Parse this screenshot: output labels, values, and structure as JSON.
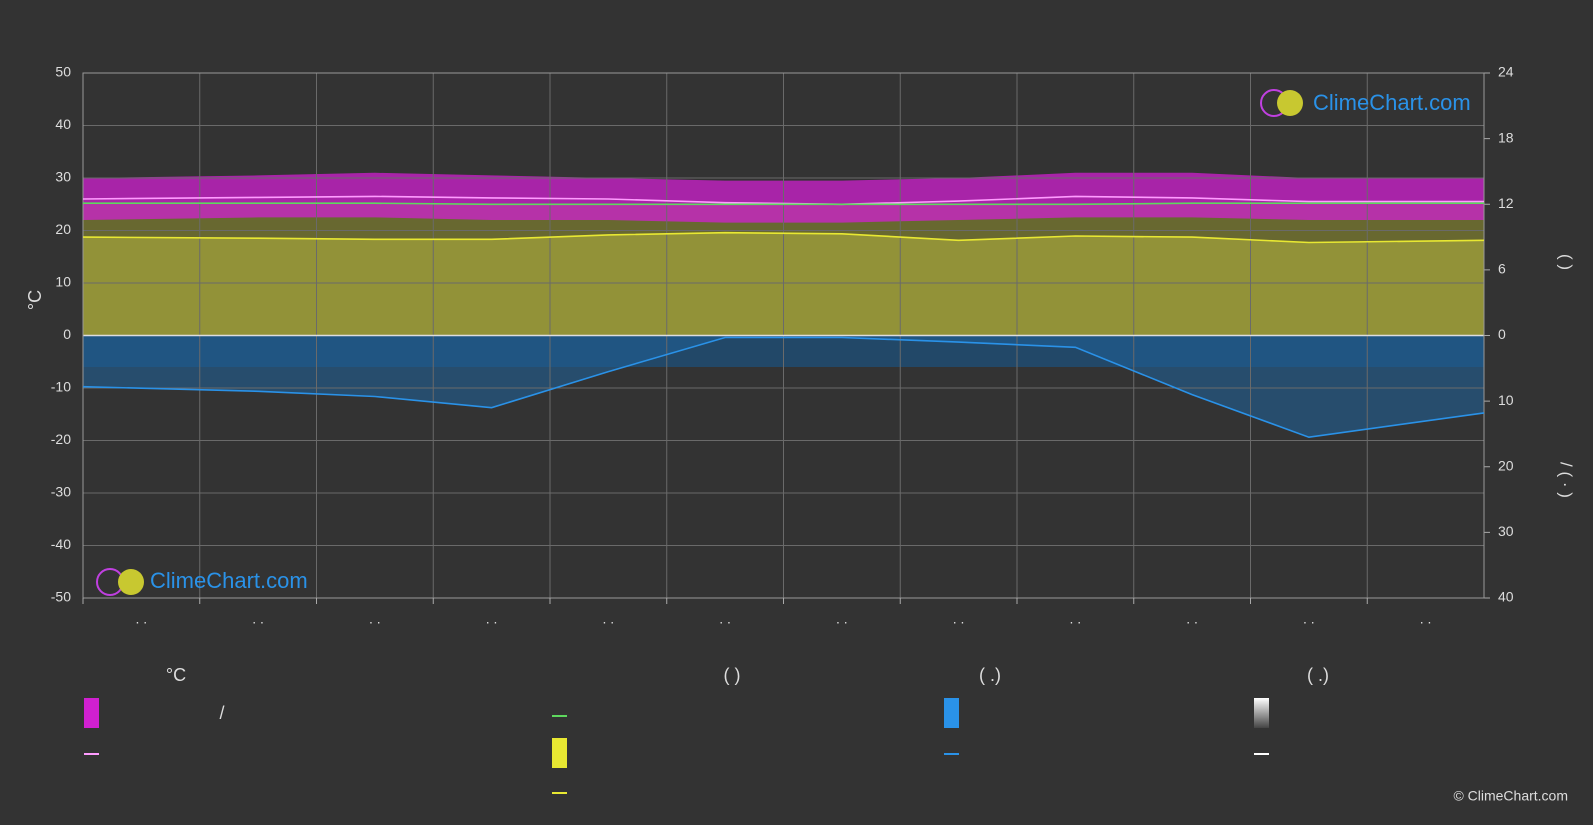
{
  "chart_data": {
    "type": "line",
    "y_label": "°C",
    "y2_label": "(   )",
    "y3_label": "/   ( · )",
    "categories": [
      ". .",
      ". .",
      ". .",
      ". .",
      ". .",
      ". .",
      ". .",
      ". .",
      ". .",
      ". .",
      ". .",
      ". ."
    ],
    "ylim": [
      -50,
      50
    ],
    "yticks": [
      -50,
      -40,
      -30,
      -20,
      -10,
      0,
      10,
      20,
      30,
      40,
      50
    ],
    "y2lim": [
      0,
      24
    ],
    "y2ticks": [
      0,
      6,
      12,
      18,
      24
    ],
    "y3lim": [
      0,
      40
    ],
    "y3ticks": [
      10,
      20,
      30,
      40
    ],
    "grid": true,
    "temp_band": {
      "color": "#d020d0",
      "upper": [
        30,
        30.5,
        31,
        30.5,
        30,
        29.5,
        29.5,
        30,
        31,
        31,
        30,
        30
      ],
      "lower": [
        22,
        22.5,
        22.5,
        22,
        22,
        21.5,
        21.5,
        22,
        22.5,
        22.5,
        22,
        22
      ]
    },
    "series": [
      {
        "color": "#ff9cff",
        "values": [
          26,
          26.3,
          26.5,
          26.2,
          26,
          25.3,
          25,
          25.6,
          26.5,
          26.2,
          25.5,
          25.5
        ]
      },
      {
        "color": "#5ed85e",
        "axis": "y2",
        "values": [
          12.1,
          12.1,
          12.1,
          12.0,
          12.0,
          12.0,
          12.0,
          12.0,
          12.0,
          12.1,
          12.1,
          12.1
        ]
      },
      {
        "color": "#e8e832",
        "axis": "y2",
        "values": [
          9.0,
          8.9,
          8.8,
          8.8,
          9.2,
          9.4,
          9.3,
          8.7,
          9.1,
          9.0,
          8.5,
          8.7
        ]
      },
      {
        "color": "#2a92e8",
        "axis": "y3",
        "values": [
          7.8,
          8.5,
          9.3,
          11,
          5.5,
          0.3,
          0.3,
          1,
          1.8,
          9,
          15.5,
          11.8
        ]
      }
    ]
  },
  "legend": {
    "headers": [
      "°C",
      "(          )",
      "(   .)",
      "(   .)"
    ],
    "row_text": "/"
  },
  "watermark": "ClimeChart.com",
  "copyright": "© ClimeChart.com"
}
